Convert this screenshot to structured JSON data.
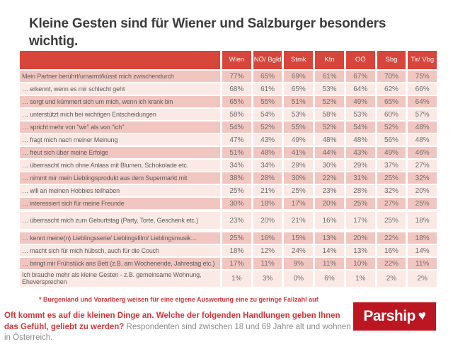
{
  "title": "Kleine Gesten sind für Wiener und Salzburger besonders wichtig.",
  "chart_data": {
    "type": "table",
    "title": "Kleine Gesten sind für Wiener und Salzburger besonders wichtig.",
    "unit": "%",
    "columns": [
      "Wien",
      "NÖ/ Bgld",
      "Stmk",
      "Ktn",
      "OÖ",
      "Sbg",
      "Tir/ Vbg"
    ],
    "rows": [
      {
        "label": "Mein Partner berührt/umarmt/küsst mich zwischendurch",
        "values": [
          77,
          65,
          69,
          61,
          67,
          70,
          75
        ]
      },
      {
        "label": "… erkennt, wenn es mir schlecht geht",
        "values": [
          68,
          61,
          65,
          53,
          64,
          62,
          66
        ]
      },
      {
        "label": "… sorgt und kümmert sich um mich, wenn ich krank bin",
        "values": [
          65,
          55,
          51,
          52,
          49,
          65,
          64
        ]
      },
      {
        "label": "… unterstützt mich bei wichtigen Entscheidungen",
        "values": [
          58,
          54,
          53,
          58,
          53,
          60,
          57
        ]
      },
      {
        "label": "… spricht mehr von \"wir\" als von \"ich\"",
        "values": [
          54,
          52,
          55,
          52,
          54,
          52,
          48
        ]
      },
      {
        "label": "… fragt mich nach meiner Meinung",
        "values": [
          47,
          43,
          49,
          48,
          48,
          56,
          48
        ]
      },
      {
        "label": "… freut sich über meine Erfolge",
        "values": [
          51,
          48,
          41,
          44,
          43,
          49,
          46
        ]
      },
      {
        "label": "… überrascht mich ohne Anlass mit Blumen, Schokolade etc.",
        "values": [
          34,
          34,
          29,
          30,
          29,
          37,
          27
        ]
      },
      {
        "label": "… nimmt mir mein Lieblingsprodukt aus dem Supermarkt mit",
        "values": [
          38,
          28,
          30,
          22,
          31,
          25,
          32
        ]
      },
      {
        "label": "… will an meinen Hobbies teilhaben",
        "values": [
          25,
          21,
          25,
          23,
          28,
          32,
          20
        ]
      },
      {
        "label": "… interessiert sich für meine Freunde",
        "values": [
          30,
          18,
          17,
          20,
          25,
          27,
          25
        ]
      },
      {
        "label": "… überrascht mich zum Geburtstag (Party, Torte, Geschenk etc.)",
        "values": [
          23,
          20,
          21,
          16,
          17,
          25,
          18
        ]
      },
      {
        "label": "… kennt meine(n) Lieblingsserie/ Lieblingsfilm/ Lieblingsmusik…",
        "values": [
          25,
          16,
          15,
          13,
          20,
          22,
          18
        ]
      },
      {
        "label": "… macht sich für mich hübsch, auch für die Couch",
        "values": [
          18,
          12,
          24,
          14,
          13,
          16,
          14
        ]
      },
      {
        "label": "… bringt mir Frühstück ans Bett (z.B. am Wochenende, Jahrestag etc.)",
        "values": [
          17,
          11,
          9,
          11,
          10,
          22,
          11
        ]
      },
      {
        "label": "Ich brauche mehr als kleine Gesten - z.B. gemeinsame Wohnung, Eheversprechen",
        "values": [
          1,
          3,
          0,
          6,
          1,
          2,
          2
        ]
      }
    ],
    "legend_position": "none",
    "grid": false
  },
  "footnote": "* Burgenland und Vorarlberg weisen für eine eigene Auswertung eine zu geringe Fallzahl auf",
  "source": {
    "question": "Oft kommt es auf die kleinen Dinge an. Welche der folgenden Handlungen geben Ihnen das Gefühl, geliebt zu werden?",
    "description": " Respondenten sind zwischen 18 und 69 Jahre alt und wohnen in Österreich."
  },
  "logo": {
    "text": "Parship",
    "heart": "♥"
  },
  "colors": {
    "header_red": "#d8453a",
    "row_dark": "#f1c6c0",
    "row_light": "#fbe9e6",
    "logo_red": "#bc1622",
    "text_red": "#d43439",
    "title_gray": "#3c3c3c",
    "cell_text_gray": "#6d6d6d",
    "source_gray": "#8a8a8a"
  }
}
